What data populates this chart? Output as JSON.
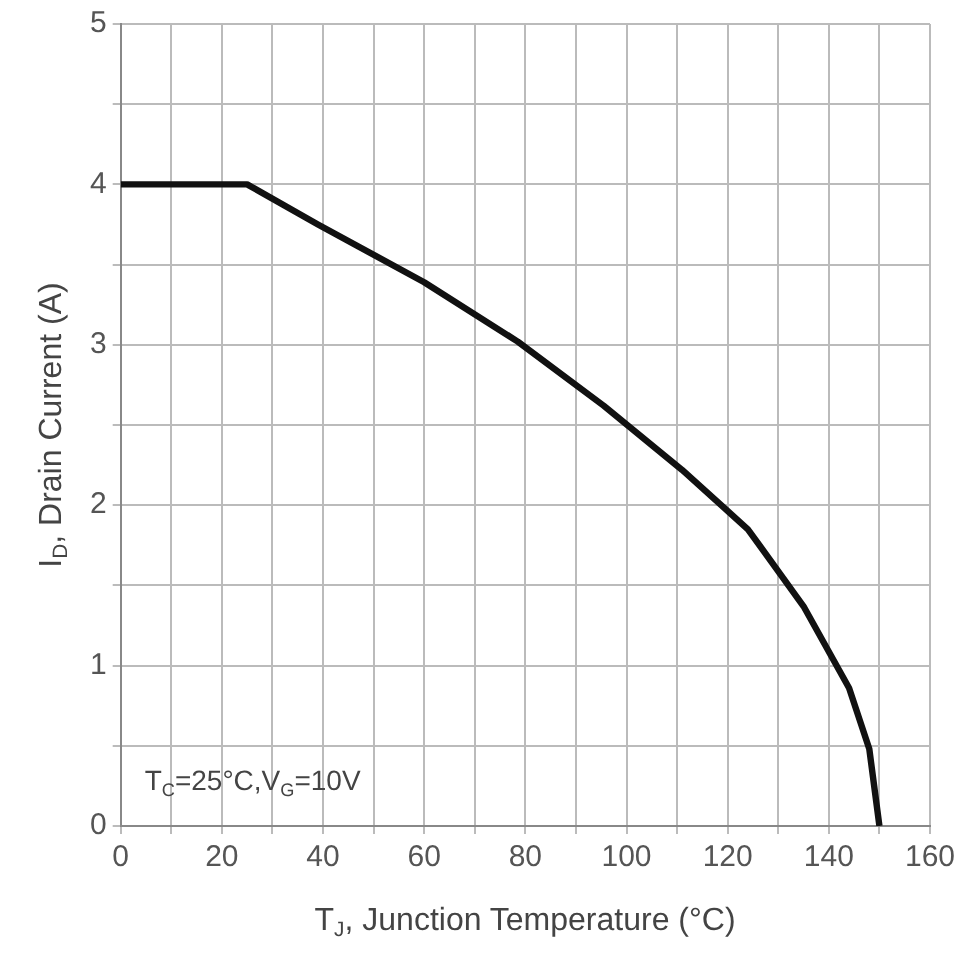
{
  "chart_data": {
    "type": "line",
    "xlabel": "T$_{J}$, Junction Temperature (°C)",
    "ylabel": "I$_{D}$, Drain Current (A)",
    "annotations": [
      "T$_{C}$=25°C,V$_{G}$=10V"
    ],
    "xlim": [
      0,
      160
    ],
    "xticks": [
      0,
      {
        "value": 10,
        "label": null
      },
      20,
      {
        "value": 30,
        "label": null
      },
      40,
      {
        "value": 50,
        "label": null
      },
      60,
      {
        "value": 70,
        "label": null
      },
      80,
      {
        "value": 90,
        "label": null
      },
      100,
      {
        "value": 110,
        "label": null
      },
      120,
      {
        "value": 130,
        "label": null
      },
      140,
      {
        "value": 150,
        "label": null
      },
      160
    ],
    "ylim": [
      0,
      5
    ],
    "yticks": [
      0,
      {
        "value": 0.5,
        "label": null
      },
      1,
      {
        "value": 1.5,
        "label": null
      },
      2,
      {
        "value": 2.5,
        "label": null
      },
      3,
      {
        "value": 3.5,
        "label": null
      },
      4,
      {
        "value": 4.5,
        "label": null
      },
      5
    ],
    "grid": true,
    "legend": false,
    "marker": "none",
    "line_style": "solid",
    "series": [
      {
        "color": "#111111",
        "x": [
          0,
          25,
          39,
          60,
          78.5,
          95.5,
          111,
          124,
          135,
          144,
          148,
          150
        ],
        "values": [
          4,
          4,
          3.75,
          3.39,
          3.02,
          2.62,
          2.22,
          1.85,
          1.37,
          0.86,
          0.48,
          0
        ]
      }
    ]
  }
}
